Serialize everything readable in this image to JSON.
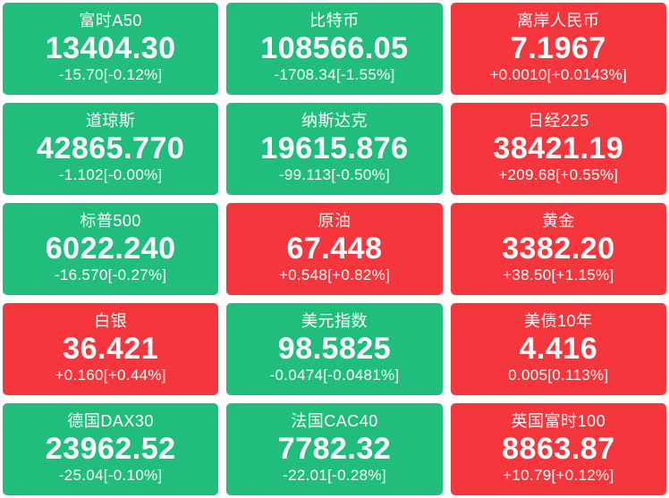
{
  "board": {
    "colors": {
      "up": "#f5373d",
      "down": "#21bd7c",
      "text": "#ffffff",
      "page_background": "#ffffff"
    },
    "tiles": [
      {
        "name": "富时A50",
        "price": "13404.30",
        "change": "-15.70[-0.12%]",
        "direction": "down"
      },
      {
        "name": "比特币",
        "price": "108566.05",
        "change": "-1708.34[-1.55%]",
        "direction": "down"
      },
      {
        "name": "离岸人民币",
        "price": "7.1967",
        "change": "+0.0010[+0.0143%]",
        "direction": "up"
      },
      {
        "name": "道琼斯",
        "price": "42865.770",
        "change": "-1.102[-0.00%]",
        "direction": "down"
      },
      {
        "name": "纳斯达克",
        "price": "19615.876",
        "change": "-99.113[-0.50%]",
        "direction": "down"
      },
      {
        "name": "日经225",
        "price": "38421.19",
        "change": "+209.68[+0.55%]",
        "direction": "up"
      },
      {
        "name": "标普500",
        "price": "6022.240",
        "change": "-16.570[-0.27%]",
        "direction": "down"
      },
      {
        "name": "原油",
        "price": "67.448",
        "change": "+0.548[+0.82%]",
        "direction": "up"
      },
      {
        "name": "黄金",
        "price": "3382.20",
        "change": "+38.50[+1.15%]",
        "direction": "up"
      },
      {
        "name": "白银",
        "price": "36.421",
        "change": "+0.160[+0.44%]",
        "direction": "up"
      },
      {
        "name": "美元指数",
        "price": "98.5825",
        "change": "-0.0474[-0.0481%]",
        "direction": "down"
      },
      {
        "name": "美债10年",
        "price": "4.416",
        "change": "0.005[0.113%]",
        "direction": "up"
      },
      {
        "name": "德国DAX30",
        "price": "23962.52",
        "change": "-25.04[-0.10%]",
        "direction": "down"
      },
      {
        "name": "法国CAC40",
        "price": "7782.32",
        "change": "-22.01[-0.28%]",
        "direction": "down"
      },
      {
        "name": "英国富时100",
        "price": "8863.87",
        "change": "+10.79[+0.12%]",
        "direction": "up"
      }
    ]
  }
}
